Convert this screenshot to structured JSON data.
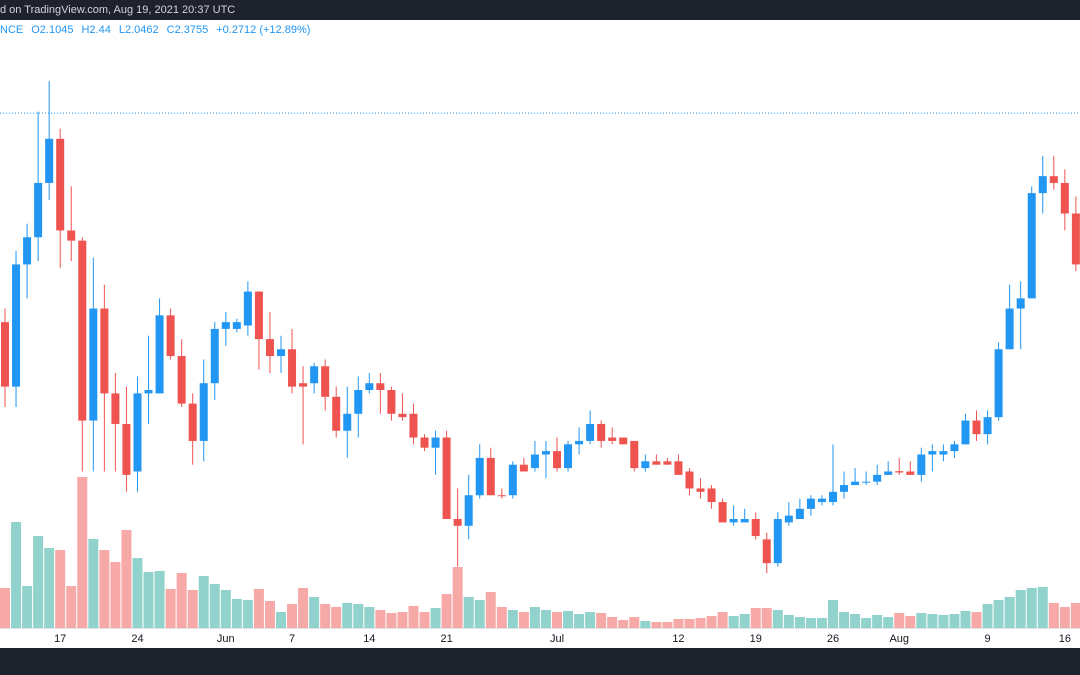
{
  "chart_data": {
    "type": "candlestick",
    "title": "d on TradingView.com, Aug 19, 2021 20:37 UTC",
    "symbol": "NCE",
    "legend": {
      "ohlc": [
        {
          "label": "O",
          "value": 2.1045
        },
        {
          "label": "H",
          "value": 2.44
        },
        {
          "label": "L",
          "value": 2.0462
        },
        {
          "label": "C",
          "value": 2.3755
        }
      ],
      "change": "+0.2712 (+12.89%)"
    },
    "up_color": "#2196f3",
    "down_color": "#ef5350",
    "volume_up_color": "#26a69a",
    "volume_down_color": "#ef5350",
    "ylim": [
      0.8,
      2.65
    ],
    "y2lim": [
      0,
      9120
    ],
    "categories": [
      null,
      null,
      null,
      null,
      null,
      "17",
      null,
      null,
      null,
      null,
      null,
      null,
      "24",
      null,
      null,
      null,
      null,
      null,
      null,
      null,
      "Jun",
      null,
      null,
      null,
      null,
      null,
      "7",
      null,
      null,
      null,
      null,
      null,
      null,
      "14",
      null,
      null,
      null,
      null,
      null,
      null,
      "21",
      null,
      null,
      null,
      null,
      null,
      null,
      null,
      null,
      null,
      "Jul",
      null,
      null,
      null,
      null,
      null,
      null,
      null,
      null,
      null,
      null,
      "12",
      null,
      null,
      null,
      null,
      null,
      null,
      "19",
      null,
      null,
      null,
      null,
      null,
      null,
      "26",
      null,
      null,
      null,
      null,
      null,
      "Aug",
      null,
      null,
      null,
      null,
      null,
      null,
      null,
      "9",
      null,
      null,
      null,
      null,
      null,
      null,
      "16",
      null
    ],
    "open": [
      1.76,
      1.57,
      1.93,
      2.01,
      2.17,
      2.3,
      2.03,
      2.0,
      1.47,
      1.8,
      1.55,
      1.46,
      1.32,
      1.55,
      1.55,
      1.78,
      1.66,
      1.52,
      1.41,
      1.58,
      1.74,
      1.74,
      1.75,
      1.85,
      1.71,
      1.66,
      1.68,
      1.58,
      1.58,
      1.63,
      1.54,
      1.44,
      1.49,
      1.56,
      1.58,
      1.56,
      1.49,
      1.49,
      1.42,
      1.39,
      1.42,
      1.18,
      1.16,
      1.25,
      1.36,
      1.25,
      1.25,
      1.34,
      1.33,
      1.37,
      1.38,
      1.33,
      1.4,
      1.41,
      1.46,
      1.42,
      1.42,
      1.41,
      1.33,
      1.35,
      1.35,
      1.35,
      1.32,
      1.27,
      1.27,
      1.23,
      1.17,
      1.17,
      1.18,
      1.12,
      1.05,
      1.17,
      1.18,
      1.21,
      1.23,
      1.23,
      1.26,
      1.28,
      1.29,
      1.29,
      1.31,
      1.321,
      1.32,
      1.31,
      1.37,
      1.37,
      1.38,
      1.4,
      1.47,
      1.43,
      1.48,
      1.68,
      1.8,
      1.83,
      2.14,
      2.19,
      2.17,
      2.08
    ],
    "high": [
      1.8,
      1.97,
      2.05,
      2.38,
      2.47,
      2.33,
      2.16,
      2.01,
      1.95,
      1.87,
      1.61,
      1.57,
      1.6,
      1.72,
      1.83,
      1.8,
      1.71,
      1.55,
      1.65,
      1.76,
      1.79,
      1.77,
      1.88,
      1.85,
      1.79,
      1.72,
      1.74,
      1.63,
      1.64,
      1.65,
      1.57,
      1.57,
      1.6,
      1.61,
      1.61,
      1.57,
      1.55,
      1.52,
      1.43,
      1.44,
      1.44,
      1.27,
      1.31,
      1.4,
      1.39,
      1.27,
      1.35,
      1.36,
      1.41,
      1.41,
      1.42,
      1.41,
      1.45,
      1.5,
      1.47,
      1.45,
      1.42,
      1.41,
      1.37,
      1.37,
      1.36,
      1.37,
      1.33,
      1.3,
      1.28,
      1.24,
      1.22,
      1.21,
      1.2,
      1.14,
      1.2,
      1.23,
      1.24,
      1.25,
      1.25,
      1.4,
      1.32,
      1.33,
      1.32,
      1.34,
      1.35,
      1.36,
      1.35,
      1.39,
      1.4,
      1.4,
      1.41,
      1.49,
      1.5,
      1.5,
      1.7,
      1.87,
      1.88,
      2.16,
      2.25,
      2.25,
      2.21,
      2.13
    ],
    "low": [
      1.51,
      1.51,
      1.83,
      1.94,
      2.12,
      1.92,
      1.94,
      1.32,
      1.32,
      1.32,
      1.32,
      1.26,
      1.26,
      1.46,
      1.55,
      1.65,
      1.51,
      1.34,
      1.35,
      1.53,
      1.69,
      1.73,
      1.72,
      1.62,
      1.61,
      1.61,
      1.55,
      1.4,
      1.55,
      1.5,
      1.42,
      1.36,
      1.42,
      1.55,
      1.49,
      1.47,
      1.47,
      1.4,
      1.38,
      1.31,
      1.18,
      1.04,
      1.12,
      1.24,
      1.25,
      1.24,
      1.24,
      1.32,
      1.32,
      1.3,
      1.32,
      1.32,
      1.37,
      1.4,
      1.39,
      1.4,
      1.4,
      1.32,
      1.32,
      1.34,
      1.34,
      1.31,
      1.25,
      1.24,
      1.21,
      1.17,
      1.16,
      1.17,
      1.12,
      1.02,
      1.04,
      1.16,
      1.18,
      1.19,
      1.22,
      1.22,
      1.24,
      1.28,
      1.28,
      1.28,
      1.31,
      1.31,
      1.31,
      1.29,
      1.32,
      1.35,
      1.36,
      1.4,
      1.41,
      1.4,
      1.47,
      1.68,
      1.68,
      1.83,
      2.08,
      2.15,
      2.03,
      1.91
    ],
    "close": [
      1.57,
      1.93,
      2.01,
      2.17,
      2.3,
      2.03,
      2.0,
      1.47,
      1.8,
      1.55,
      1.46,
      1.31,
      1.55,
      1.56,
      1.78,
      1.66,
      1.52,
      1.41,
      1.58,
      1.74,
      1.76,
      1.76,
      1.85,
      1.71,
      1.66,
      1.68,
      1.57,
      1.57,
      1.63,
      1.54,
      1.44,
      1.49,
      1.56,
      1.58,
      1.56,
      1.49,
      1.48,
      1.42,
      1.39,
      1.42,
      1.18,
      1.16,
      1.25,
      1.36,
      1.25,
      1.248,
      1.34,
      1.32,
      1.37,
      1.38,
      1.33,
      1.4,
      1.41,
      1.46,
      1.41,
      1.41,
      1.4,
      1.33,
      1.35,
      1.34,
      1.34,
      1.31,
      1.27,
      1.26,
      1.23,
      1.17,
      1.18,
      1.18,
      1.13,
      1.05,
      1.18,
      1.19,
      1.21,
      1.24,
      1.24,
      1.26,
      1.28,
      1.29,
      1.29,
      1.31,
      1.32,
      1.317,
      1.31,
      1.37,
      1.38,
      1.38,
      1.4,
      1.47,
      1.43,
      1.48,
      1.68,
      1.8,
      1.83,
      2.14,
      2.19,
      2.17,
      2.08,
      1.93
    ],
    "volume": [
      600,
      1590,
      630,
      1380,
      1200,
      1170,
      630,
      2265,
      1335,
      1170,
      990,
      1470,
      1050,
      840,
      855,
      585,
      825,
      570,
      780,
      660,
      570,
      435,
      420,
      585,
      405,
      240,
      360,
      600,
      465,
      360,
      315,
      375,
      360,
      315,
      270,
      225,
      240,
      330,
      240,
      300,
      510,
      915,
      465,
      420,
      540,
      315,
      270,
      240,
      315,
      270,
      240,
      255,
      210,
      240,
      225,
      165,
      120,
      165,
      105,
      90,
      90,
      135,
      135,
      150,
      180,
      240,
      180,
      210,
      300,
      300,
      270,
      195,
      165,
      150,
      150,
      420,
      240,
      210,
      150,
      195,
      165,
      225,
      180,
      225,
      210,
      195,
      210,
      255,
      240,
      360,
      420,
      465,
      570,
      600,
      615,
      375,
      315,
      375
    ]
  }
}
